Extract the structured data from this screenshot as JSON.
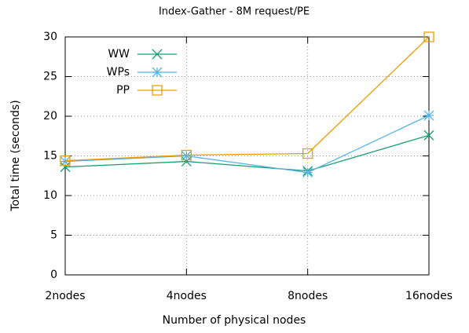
{
  "chart_data": {
    "type": "line",
    "title": "Index-Gather - 8M request/PE",
    "xlabel": "Number of physical nodes",
    "ylabel": "Total time (seconds)",
    "categories": [
      "2nodes",
      "4nodes",
      "8nodes",
      "16nodes"
    ],
    "series": [
      {
        "name": "WW",
        "color": "#1a9e77",
        "marker": "x",
        "values": [
          13.6,
          14.3,
          13.1,
          17.6
        ]
      },
      {
        "name": "WPs",
        "color": "#56b4e9",
        "marker": "star",
        "values": [
          14.3,
          15.0,
          12.9,
          20.1
        ]
      },
      {
        "name": "PP",
        "color": "#e69f00",
        "marker": "square",
        "values": [
          14.4,
          15.1,
          15.3,
          30
        ]
      }
    ],
    "ylim": [
      0,
      30
    ],
    "yticks": [
      0,
      5,
      10,
      15,
      20,
      25,
      30
    ],
    "grid": true,
    "legend": "top left"
  }
}
